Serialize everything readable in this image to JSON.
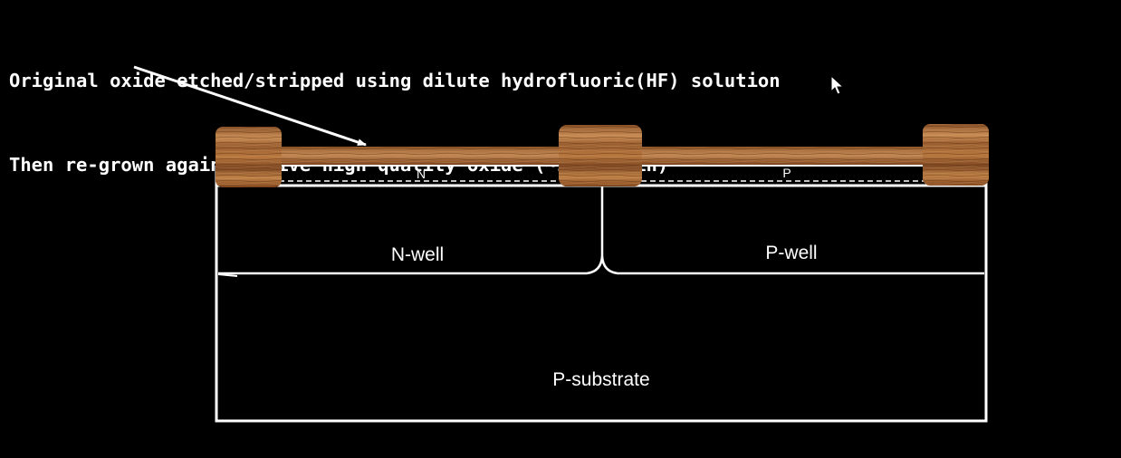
{
  "caption": {
    "line1": "Original oxide etched/stripped using dilute hydrofluoric(HF) solution",
    "line2": "Then re-grown again to give high quality oxide (~10nm thin)"
  },
  "labels": {
    "n_diffusion": "N",
    "p_diffusion": "P",
    "n_well": "N-well",
    "p_well": "P-well",
    "substrate": "P-substrate"
  },
  "colors": {
    "background": "#000000",
    "line": "#ffffff",
    "oxide_mid": "#a8683a"
  },
  "icons": {
    "cursor": "mouse-pointer-icon",
    "arrow": "arrow-icon"
  }
}
